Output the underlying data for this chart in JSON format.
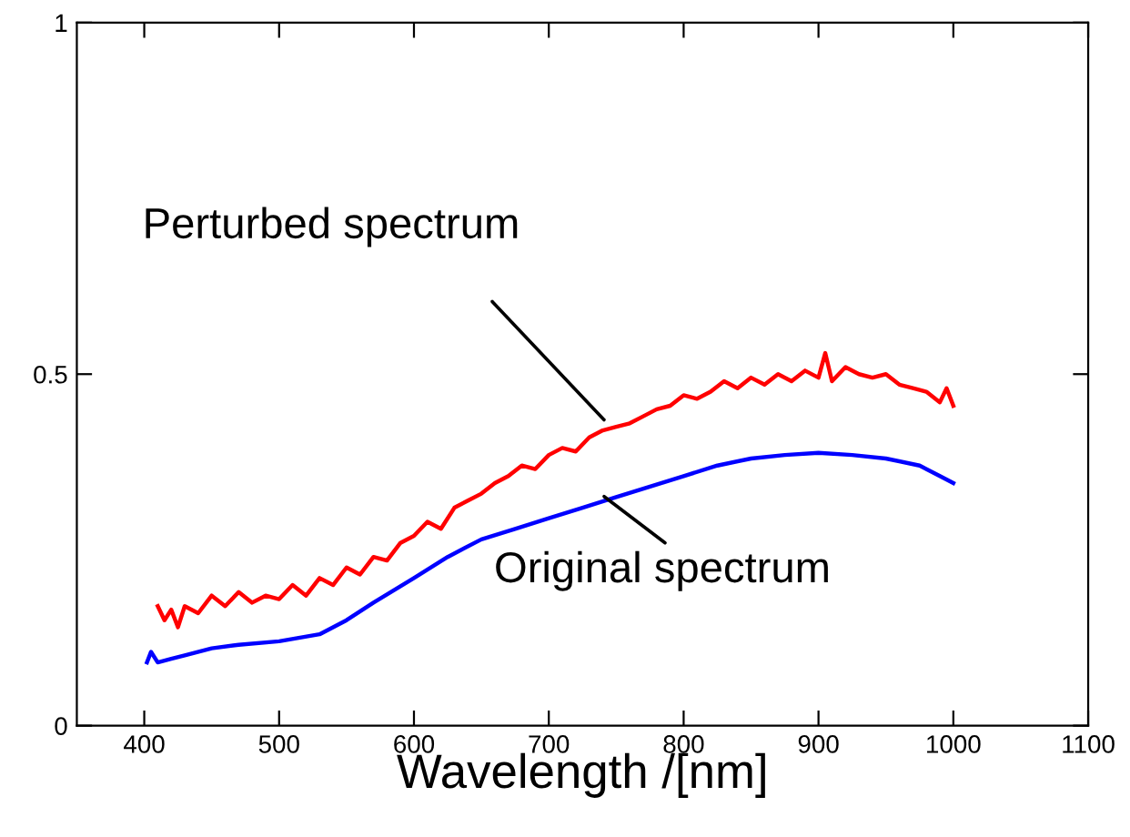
{
  "chart_data": {
    "type": "line",
    "xlabel": "Wavelength /[nm]",
    "xlim": [
      350,
      1100
    ],
    "xticks": [
      400,
      500,
      600,
      700,
      800,
      900,
      1000,
      1100
    ],
    "ylim": [
      0,
      1
    ],
    "yticks": [
      0,
      0.5,
      1
    ],
    "grid": false,
    "marker": "none",
    "line_style": "solid",
    "series": [
      {
        "color": "#ff0000",
        "x": [
          410,
          415,
          420,
          425,
          430,
          440,
          450,
          460,
          470,
          480,
          490,
          500,
          510,
          520,
          530,
          540,
          550,
          560,
          570,
          580,
          590,
          600,
          610,
          620,
          630,
          640,
          650,
          660,
          670,
          680,
          690,
          700,
          710,
          720,
          730,
          740,
          750,
          760,
          770,
          780,
          790,
          800,
          810,
          820,
          830,
          840,
          850,
          860,
          870,
          880,
          890,
          900,
          905,
          910,
          920,
          930,
          940,
          950,
          960,
          970,
          980,
          990,
          995,
          1000
        ],
        "values": [
          0.17,
          0.15,
          0.165,
          0.14,
          0.17,
          0.16,
          0.185,
          0.17,
          0.19,
          0.175,
          0.185,
          0.18,
          0.2,
          0.185,
          0.21,
          0.2,
          0.225,
          0.215,
          0.24,
          0.235,
          0.26,
          0.27,
          0.29,
          0.28,
          0.31,
          0.32,
          0.33,
          0.345,
          0.355,
          0.37,
          0.365,
          0.385,
          0.395,
          0.39,
          0.41,
          0.42,
          0.425,
          0.43,
          0.44,
          0.45,
          0.455,
          0.47,
          0.465,
          0.475,
          0.49,
          0.48,
          0.495,
          0.485,
          0.5,
          0.49,
          0.505,
          0.495,
          0.53,
          0.49,
          0.51,
          0.5,
          0.495,
          0.5,
          0.485,
          0.48,
          0.475,
          0.46,
          0.48,
          0.455
        ]
      },
      {
        "color": "#0000ff",
        "x": [
          402,
          405,
          410,
          420,
          430,
          450,
          470,
          500,
          530,
          550,
          570,
          600,
          625,
          650,
          675,
          700,
          725,
          750,
          775,
          800,
          825,
          850,
          875,
          900,
          925,
          950,
          975,
          990,
          1000
        ],
        "values": [
          0.09,
          0.105,
          0.09,
          0.095,
          0.1,
          0.11,
          0.115,
          0.12,
          0.13,
          0.15,
          0.175,
          0.21,
          0.24,
          0.265,
          0.28,
          0.295,
          0.31,
          0.325,
          0.34,
          0.355,
          0.37,
          0.38,
          0.385,
          0.388,
          0.385,
          0.38,
          0.37,
          0.355,
          0.345
        ]
      }
    ],
    "annotations": [
      {
        "text": "Perturbed spectrum",
        "x": 741,
        "y": 0.435
      },
      {
        "text": "Original spectrum",
        "x": 741,
        "y": 0.326
      }
    ]
  }
}
